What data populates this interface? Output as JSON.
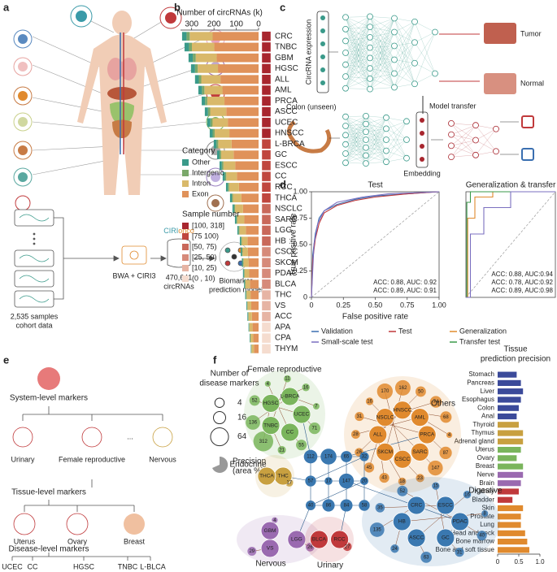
{
  "panel_labels": [
    "a",
    "b",
    "c",
    "d",
    "e",
    "f"
  ],
  "panel_a": {
    "cohort": [
      "2,535 samples",
      "cohort data"
    ],
    "pipeline": "BWA + CIRI3",
    "brand": [
      "CIRI",
      "onco"
    ],
    "circrnas": [
      "470,641",
      "circRNAs"
    ],
    "model": [
      "Biomarker",
      "prediction model"
    ]
  },
  "panel_c": {
    "input": "CircRNA expression",
    "tumor": "Tumor",
    "normal": "Normal",
    "transfer": "Model transfer",
    "unseen": "Colon (unseen)",
    "embedding": "Embedding"
  },
  "panel_e": {
    "system": "System-level markers",
    "systems": [
      "Urinary",
      "Female reproductive",
      "...",
      "Nervous"
    ],
    "tissue": "Tissue-level markers",
    "tissues": [
      "Uterus",
      "Ovary",
      "Breast"
    ],
    "disease": "Disease-level markers",
    "diseases": [
      "UCEC",
      "CC",
      "HGSC",
      "TNBC",
      "L-BLCA"
    ]
  },
  "panel_f_network": {
    "legend_title": [
      "Number of",
      "disease markers"
    ],
    "legend_sizes": [
      4,
      16,
      64
    ],
    "precision_label": [
      "Precision",
      "(area %)"
    ],
    "groups": [
      {
        "name": "Female reproductive",
        "color": "#7ab55c",
        "diseases": [
          "UCEC",
          "CC",
          "TNBC",
          "HGSC",
          "L-BRCA"
        ],
        "marker_counts": [
          71,
          55,
          21,
          312,
          136,
          52,
          4,
          11,
          16,
          7
        ]
      },
      {
        "name": "Others",
        "color": "#e08a2e",
        "diseases": [
          "PRCA",
          "SARC",
          "CSCC",
          "SKCM",
          "ALL",
          "NSCLC",
          "HNSCC",
          "AML"
        ],
        "marker_counts": [
          87,
          147,
          23,
          18,
          43,
          45,
          26,
          28,
          31,
          16,
          170,
          162,
          50,
          74,
          68,
          4
        ]
      },
      {
        "name": "Endocrine",
        "color": "#c8a040",
        "diseases": [
          "THC",
          "THCA"
        ],
        "marker_counts": [
          17
        ]
      },
      {
        "name": "Digestive",
        "color": "#3a78b0",
        "diseases": [
          "PDAC",
          "GC",
          "ASCC",
          "HB",
          "CRC",
          "ESCC"
        ],
        "marker_counts": [
          40,
          31,
          63,
          24,
          135,
          35,
          52,
          15,
          16,
          8
        ]
      },
      {
        "name": "Nervous",
        "color": "#9a6ab0",
        "diseases": [
          "LGG",
          "VS",
          "GBM"
        ],
        "marker_counts": [
          26,
          29,
          4
        ]
      },
      {
        "name": "Urinary",
        "color": "#c0393b",
        "diseases": [
          "RCC",
          "BLCA"
        ],
        "marker_counts": [
          27
        ]
      }
    ],
    "hub_counts": [
      112,
      174,
      65,
      32,
      57,
      17,
      147,
      20,
      40,
      86,
      84,
      58
    ]
  },
  "chart_data": [
    {
      "type": "bar",
      "title": "Number of circRNAs (k)",
      "reversed": true,
      "categories": [
        "CRC",
        "TNBC",
        "GBM",
        "HGSC",
        "ALL",
        "AML",
        "PRCA",
        "ASCC",
        "UCEC",
        "HNSCC",
        "L-BRCA",
        "GC",
        "ESCC",
        "CC",
        "RCC",
        "THCA",
        "NSCLC",
        "SARC",
        "LGG",
        "HB",
        "CSCC",
        "SKCM",
        "PDAC",
        "BLCA",
        "THC",
        "VS",
        "ACC",
        "APA",
        "CPA",
        "THYM"
      ],
      "series": [
        {
          "name": "Exon",
          "color": "#e0925a",
          "values": [
            206,
            199,
            188,
            182,
            171,
            162,
            153,
            145,
            138,
            131,
            121,
            112,
            105,
            97,
            88,
            77,
            70,
            64,
            57,
            50,
            48,
            45,
            42,
            39,
            36,
            33,
            30,
            27,
            24,
            21
          ]
        },
        {
          "name": "Intron",
          "color": "#d9b96a",
          "values": [
            103,
            100,
            94,
            91,
            86,
            81,
            77,
            72,
            69,
            66,
            60,
            56,
            53,
            48,
            44,
            38,
            35,
            32,
            29,
            25,
            24,
            23,
            21,
            20,
            18,
            17,
            15,
            14,
            12,
            11
          ]
        },
        {
          "name": "Intergenic",
          "color": "#7aa86a",
          "values": [
            14,
            13,
            13,
            12,
            11,
            11,
            10,
            10,
            9,
            9,
            8,
            7,
            7,
            6,
            6,
            5,
            5,
            4,
            4,
            4,
            3,
            3,
            3,
            3,
            3,
            2,
            2,
            2,
            2,
            1
          ]
        },
        {
          "name": "Other",
          "color": "#3a9a8a",
          "values": [
            20,
            20,
            19,
            18,
            17,
            16,
            15,
            14,
            14,
            13,
            12,
            11,
            10,
            10,
            8,
            8,
            7,
            6,
            5,
            5,
            5,
            4,
            4,
            3,
            3,
            3,
            3,
            2,
            2,
            2
          ]
        }
      ],
      "xlim": [
        0,
        350
      ],
      "xticks": [
        0,
        100,
        200,
        300
      ],
      "legend_title": "Category",
      "sample_legend_title": "Sample number",
      "sample_legend": [
        "[100, 318]",
        "[75 100)",
        "[50, 75)",
        "[25, 50)",
        "[10, 25)",
        "(0 , 10)"
      ],
      "sample_legend_colors": [
        "#a8262e",
        "#c0463e",
        "#c9685a",
        "#d68a7a",
        "#e6b4a4",
        "#f5dccf"
      ],
      "sample_colors": [
        "#a8262e",
        "#a8262e",
        "#a8262e",
        "#a8262e",
        "#a8262e",
        "#a8262e",
        "#a8262e",
        "#a8262e",
        "#a8262e",
        "#a8262e",
        "#c0463e",
        "#c0463e",
        "#c0463e",
        "#c0463e",
        "#c0463e",
        "#c0463e",
        "#c9685a",
        "#c9685a",
        "#c9685a",
        "#c9685a",
        "#d68a7a",
        "#d68a7a",
        "#d68a7a",
        "#d68a7a",
        "#e6b4a4",
        "#e6b4a4",
        "#e6b4a4",
        "#f5dccf",
        "#f5dccf",
        "#f5dccf"
      ]
    },
    {
      "type": "line",
      "title": "Test",
      "xlabel": "False positive rate",
      "ylabel": "True positive rate",
      "xlim": [
        0,
        1
      ],
      "ylim": [
        0,
        1
      ],
      "xticks": [
        0,
        0.25,
        {
          "value": 0.5,
          "label": "0.50"
        },
        0.75,
        {
          "value": 1,
          "label": "1.00"
        }
      ],
      "yticks": [
        0,
        0.25,
        {
          "value": 0.5,
          "label": "0.50"
        },
        0.75,
        {
          "value": 1,
          "label": "1.00"
        }
      ],
      "series": [
        {
          "name": "Validation",
          "color": "#3a6fb0",
          "x": [
            0,
            0.01,
            0.03,
            0.06,
            0.1,
            0.2,
            0.35,
            0.5,
            0.75,
            1
          ],
          "values": [
            0,
            0.4,
            0.6,
            0.75,
            0.82,
            0.88,
            0.93,
            0.96,
            0.98,
            1
          ]
        },
        {
          "name": "Test",
          "color": "#c0393b",
          "x": [
            0,
            0.01,
            0.03,
            0.06,
            0.1,
            0.2,
            0.35,
            0.5,
            0.75,
            1
          ],
          "values": [
            0,
            0.35,
            0.55,
            0.7,
            0.8,
            0.87,
            0.92,
            0.95,
            0.98,
            1
          ]
        },
        {
          "name": "Small-scale test",
          "color": "#7b6fc0",
          "x": [
            0,
            0.02,
            0.05,
            0.1,
            0.2,
            0.4,
            0.6,
            1
          ],
          "values": [
            0,
            0.5,
            0.7,
            0.82,
            0.9,
            0.95,
            0.98,
            1
          ]
        }
      ],
      "annotations": [
        {
          "text": "ACC: 0.88, AUC: 0.92",
          "color": "#3a6fb0"
        },
        {
          "text": "ACC: 0.89, AUC: 0.91",
          "color": "#c0393b"
        }
      ]
    },
    {
      "type": "line",
      "title": "Generalization & transfer",
      "xlim": [
        0,
        1
      ],
      "ylim": [
        0,
        1
      ],
      "series": [
        {
          "name": "Generalization",
          "color": "#e08a2e",
          "x": [
            0,
            0.02,
            0.02,
            0.1,
            0.1,
            0.3,
            0.3,
            1
          ],
          "values": [
            0,
            0,
            0.75,
            0.75,
            0.95,
            0.95,
            1,
            1
          ]
        },
        {
          "name": "Transfer test",
          "color": "#3a9a4a",
          "x": [
            0,
            0.01,
            0.01,
            0.05,
            0.05,
            1
          ],
          "values": [
            0,
            0,
            0.9,
            0.9,
            1,
            1
          ]
        },
        {
          "color": "#7b6fc0",
          "x": [
            0,
            0.05,
            0.05,
            0.2,
            0.2,
            0.5,
            0.5,
            1
          ],
          "values": [
            0,
            0,
            0.6,
            0.6,
            0.85,
            0.85,
            1,
            1
          ]
        }
      ],
      "annotations": [
        {
          "text": "ACC: 0.88, AUC:0.94",
          "color": "#e08a2e"
        },
        {
          "text": "ACC: 0.78, AUC:0.92",
          "color": "#7b6fc0"
        },
        {
          "text": "ACC: 0.89, AUC:0.98",
          "color": "#3a9a4a"
        }
      ]
    },
    {
      "type": "bar",
      "title": [
        "Tissue",
        "prediction precision"
      ],
      "categories": [
        "Stomach",
        "Pancreas",
        "Liver",
        "Esophagus",
        "Colon",
        "Anal",
        "Thyroid",
        "Thymus",
        "Adrenal gland",
        "Uterus",
        "Ovary",
        "Breast",
        "Nerve",
        "Brain",
        "Kidney",
        "Bladder",
        "Skin",
        "Prostate",
        "Lung",
        "Head and neck",
        "Bone marrow",
        "Bone and soft tissue"
      ],
      "values": [
        0.45,
        0.55,
        0.6,
        0.55,
        0.5,
        0.45,
        0.5,
        0.6,
        0.6,
        0.55,
        0.45,
        0.6,
        0.6,
        0.55,
        0.5,
        0.35,
        0.6,
        0.55,
        0.55,
        0.65,
        0.7,
        0.75
      ],
      "colors": [
        "#3b4a9a",
        "#3b4a9a",
        "#3b4a9a",
        "#3b4a9a",
        "#3b4a9a",
        "#3b4a9a",
        "#c8a040",
        "#c8a040",
        "#c8a040",
        "#7ab55c",
        "#7ab55c",
        "#7ab55c",
        "#9a6ab0",
        "#9a6ab0",
        "#c0393b",
        "#c0393b",
        "#e08a2e",
        "#e08a2e",
        "#e08a2e",
        "#e08a2e",
        "#e08a2e",
        "#e08a2e"
      ],
      "xlim": [
        0,
        1
      ],
      "xticks": [
        0,
        0.5,
        {
          "value": 1,
          "label": "1.0"
        }
      ]
    }
  ]
}
